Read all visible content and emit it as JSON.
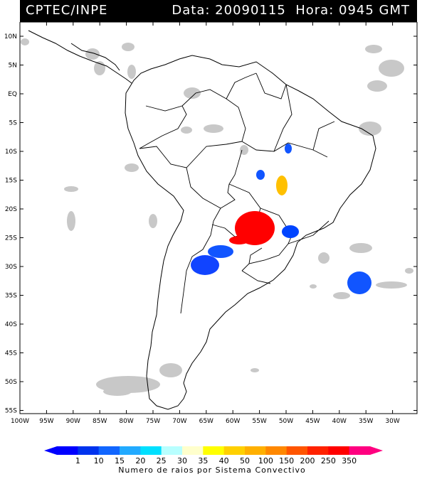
{
  "header": {
    "left": "CPTEC/INPE",
    "right": "Data: 20090115  Hora: 0945 GMT"
  },
  "map": {
    "lat_labels": [
      "10N",
      "5N",
      "EQ",
      "5S",
      "10S",
      "15S",
      "20S",
      "25S",
      "30S",
      "35S",
      "40S",
      "45S",
      "50S",
      "55S"
    ],
    "lon_labels": [
      "100W",
      "95W",
      "90W",
      "85W",
      "80W",
      "75W",
      "70W",
      "65W",
      "60W",
      "55W",
      "50W",
      "45W",
      "40W",
      "35W",
      "30W"
    ]
  },
  "legend": {
    "values": [
      "1",
      "10",
      "15",
      "20",
      "25",
      "30",
      "35",
      "40",
      "50",
      "100",
      "150",
      "200",
      "250",
      "350"
    ],
    "colors": [
      "#0000ff",
      "#0033ee",
      "#1166ff",
      "#22aaff",
      "#00e0ff",
      "#b8ffff",
      "#ffffcc",
      "#ffff00",
      "#ffd000",
      "#ffb000",
      "#ff8800",
      "#ff5500",
      "#ff2200",
      "#ff0000",
      "#ff0080"
    ],
    "title": "Numero de raios por Sistema Convectivo"
  }
}
